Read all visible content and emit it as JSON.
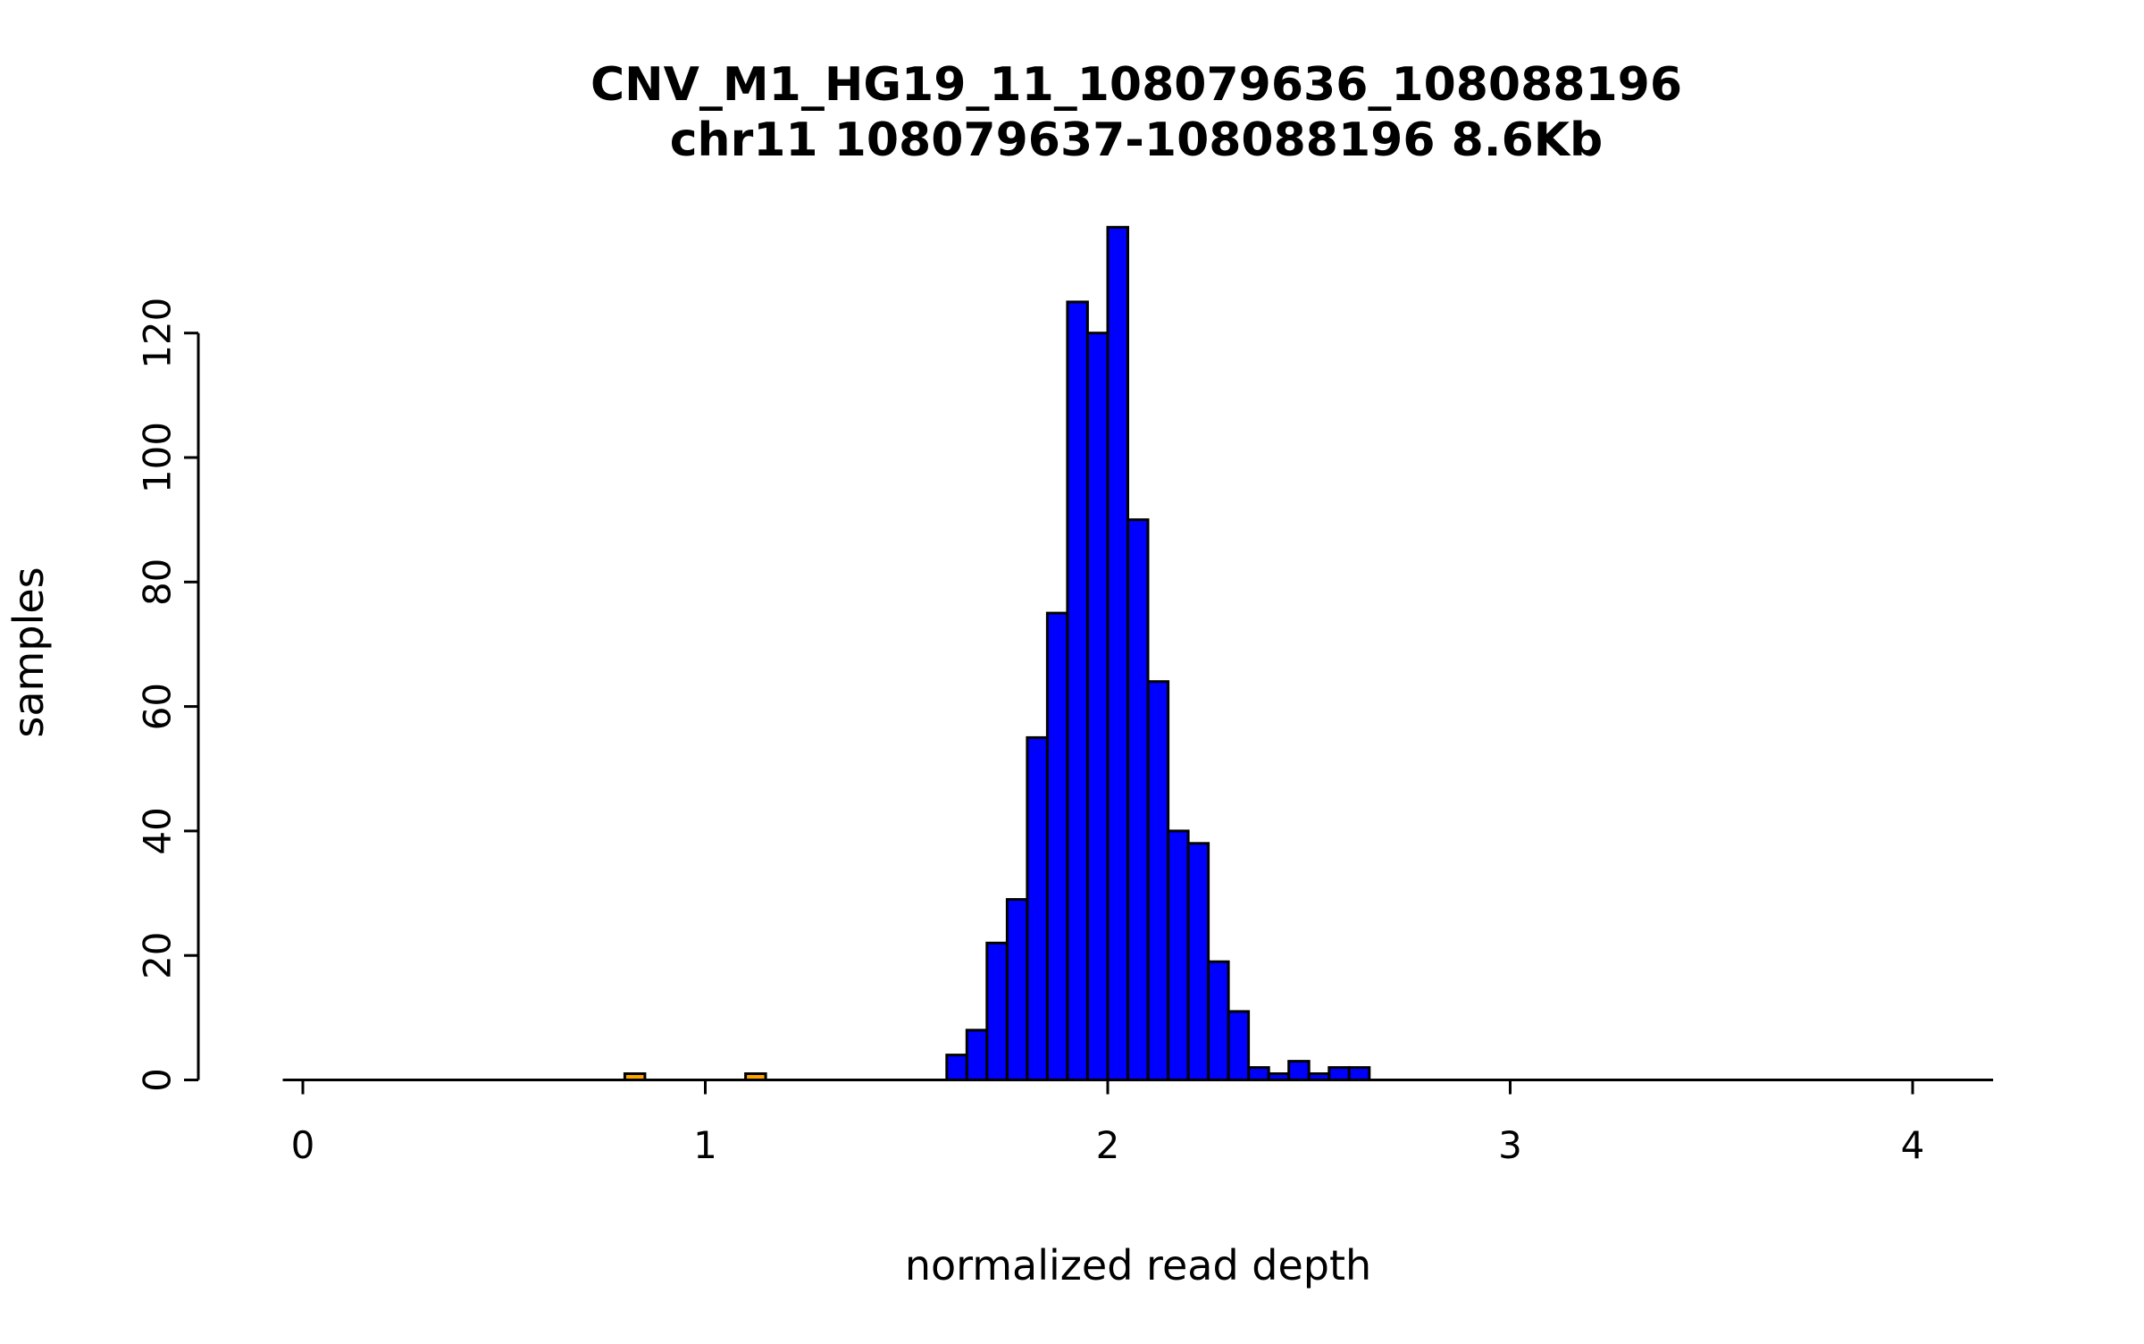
{
  "chart_data": {
    "type": "bar",
    "subtype": "histogram",
    "title": "CNV_M1_HG19_11_108079636_108088196",
    "subtitle": "chr11 108079637-108088196 8.6Kb",
    "xlabel": "normalized read depth",
    "ylabel": "samples",
    "x_ticks": [
      0,
      1,
      2,
      3,
      4
    ],
    "y_ticks": [
      0,
      20,
      40,
      60,
      80,
      100,
      120
    ],
    "xlim": [
      -0.05,
      4.2
    ],
    "ylim": [
      0,
      137
    ],
    "bin_width": 0.05,
    "grid": false,
    "legend": "none",
    "colors": {
      "main_bars": "#0000FF",
      "outlier_bars": "#FFA500",
      "bar_border": "#000000",
      "axis": "#000000"
    },
    "bars": [
      {
        "x": 0.8,
        "count": 1,
        "color": "#FFA500"
      },
      {
        "x": 1.1,
        "count": 1,
        "color": "#FFA500"
      },
      {
        "x": 1.6,
        "count": 4,
        "color": "#0000FF"
      },
      {
        "x": 1.65,
        "count": 8,
        "color": "#0000FF"
      },
      {
        "x": 1.7,
        "count": 22,
        "color": "#0000FF"
      },
      {
        "x": 1.75,
        "count": 29,
        "color": "#0000FF"
      },
      {
        "x": 1.8,
        "count": 55,
        "color": "#0000FF"
      },
      {
        "x": 1.85,
        "count": 75,
        "color": "#0000FF"
      },
      {
        "x": 1.9,
        "count": 125,
        "color": "#0000FF"
      },
      {
        "x": 1.95,
        "count": 120,
        "color": "#0000FF"
      },
      {
        "x": 2.0,
        "count": 137,
        "color": "#0000FF"
      },
      {
        "x": 2.05,
        "count": 90,
        "color": "#0000FF"
      },
      {
        "x": 2.1,
        "count": 64,
        "color": "#0000FF"
      },
      {
        "x": 2.15,
        "count": 40,
        "color": "#0000FF"
      },
      {
        "x": 2.2,
        "count": 38,
        "color": "#0000FF"
      },
      {
        "x": 2.25,
        "count": 19,
        "color": "#0000FF"
      },
      {
        "x": 2.3,
        "count": 11,
        "color": "#0000FF"
      },
      {
        "x": 2.35,
        "count": 2,
        "color": "#0000FF"
      },
      {
        "x": 2.4,
        "count": 1,
        "color": "#0000FF"
      },
      {
        "x": 2.45,
        "count": 3,
        "color": "#0000FF"
      },
      {
        "x": 2.5,
        "count": 1,
        "color": "#0000FF"
      },
      {
        "x": 2.55,
        "count": 2,
        "color": "#0000FF"
      },
      {
        "x": 2.6,
        "count": 2,
        "color": "#0000FF"
      }
    ]
  }
}
